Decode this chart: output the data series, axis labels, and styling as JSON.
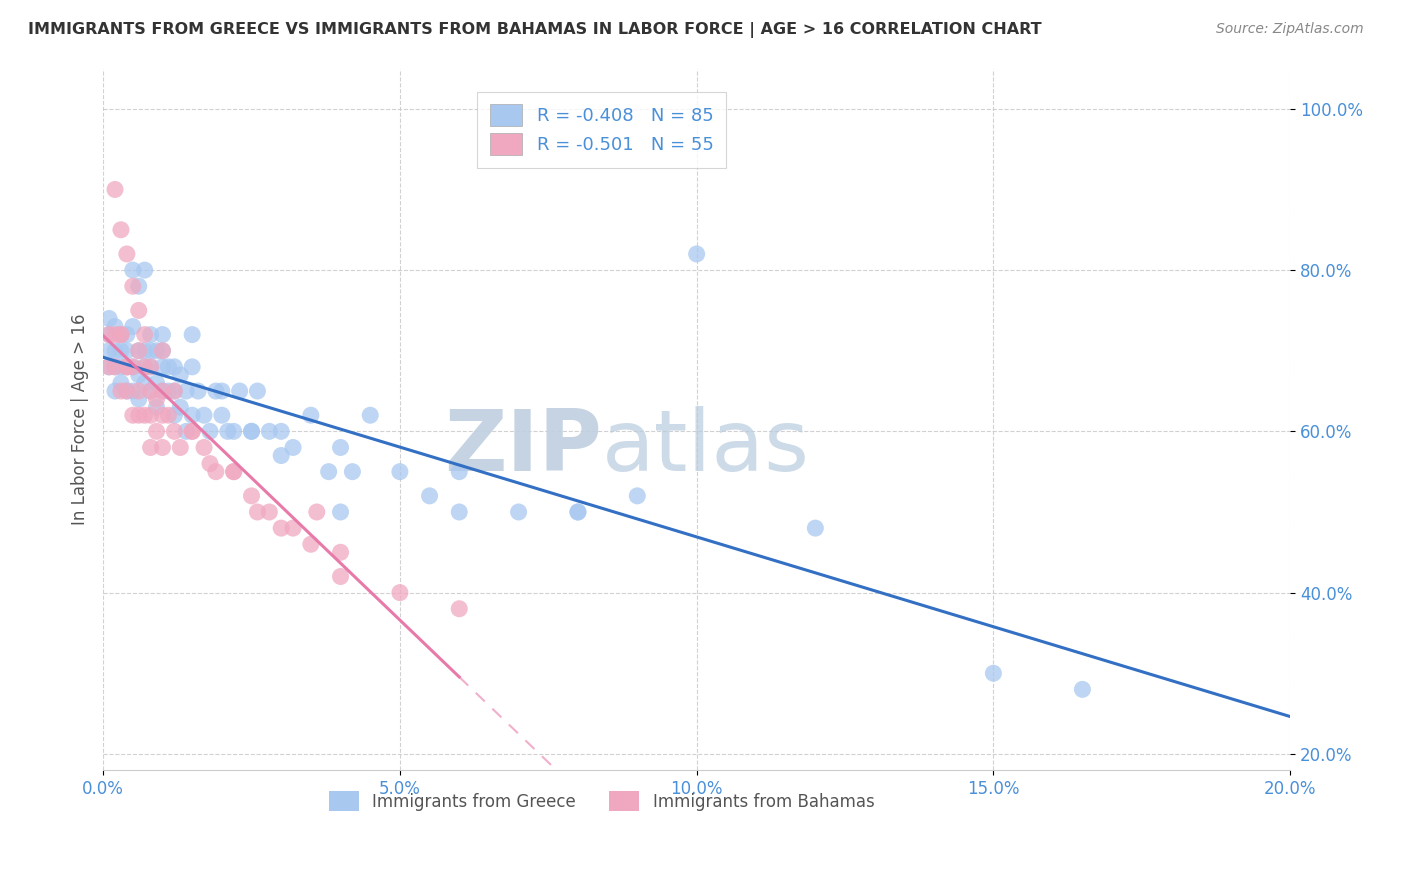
{
  "title": "IMMIGRANTS FROM GREECE VS IMMIGRANTS FROM BAHAMAS IN LABOR FORCE | AGE > 16 CORRELATION CHART",
  "source": "Source: ZipAtlas.com",
  "ylabel": "In Labor Force | Age > 16",
  "xlim": [
    0.0,
    0.2
  ],
  "ylim": [
    0.18,
    1.05
  ],
  "xticks": [
    0.0,
    0.05,
    0.1,
    0.15,
    0.2
  ],
  "yticks": [
    0.2,
    0.4,
    0.6,
    0.8,
    1.0
  ],
  "xtick_labels": [
    "0.0%",
    "5.0%",
    "10.0%",
    "15.0%",
    "20.0%"
  ],
  "ytick_labels": [
    "20.0%",
    "40.0%",
    "60.0%",
    "80.0%",
    "100.0%"
  ],
  "greece_color": "#a8c8f0",
  "bahamas_color": "#f0a8c0",
  "greece_line_color": "#3370c4",
  "bahamas_line_color": "#e87aaa",
  "greece_R": -0.408,
  "greece_N": 85,
  "bahamas_R": -0.501,
  "bahamas_N": 55,
  "watermark_zip": "ZIP",
  "watermark_atlas": "atlas",
  "watermark_color_zip": "#c0cfe0",
  "watermark_color_atlas": "#b8cce0",
  "legend_label_greece": "Immigrants from Greece",
  "legend_label_bahamas": "Immigrants from Bahamas",
  "greece_x": [
    0.001,
    0.001,
    0.001,
    0.001,
    0.002,
    0.002,
    0.002,
    0.002,
    0.003,
    0.003,
    0.003,
    0.003,
    0.004,
    0.004,
    0.004,
    0.004,
    0.005,
    0.005,
    0.005,
    0.006,
    0.006,
    0.006,
    0.007,
    0.007,
    0.007,
    0.008,
    0.008,
    0.008,
    0.009,
    0.009,
    0.009,
    0.01,
    0.01,
    0.01,
    0.011,
    0.011,
    0.012,
    0.012,
    0.013,
    0.013,
    0.014,
    0.014,
    0.015,
    0.015,
    0.016,
    0.017,
    0.018,
    0.019,
    0.02,
    0.021,
    0.022,
    0.023,
    0.025,
    0.026,
    0.028,
    0.03,
    0.032,
    0.035,
    0.038,
    0.04,
    0.042,
    0.045,
    0.05,
    0.055,
    0.06,
    0.07,
    0.08,
    0.09,
    0.1,
    0.005,
    0.006,
    0.007,
    0.008,
    0.01,
    0.012,
    0.015,
    0.02,
    0.025,
    0.03,
    0.04,
    0.06,
    0.08,
    0.12,
    0.15,
    0.165
  ],
  "greece_y": [
    0.72,
    0.68,
    0.74,
    0.7,
    0.7,
    0.65,
    0.73,
    0.68,
    0.72,
    0.68,
    0.7,
    0.66,
    0.7,
    0.65,
    0.68,
    0.72,
    0.73,
    0.68,
    0.65,
    0.7,
    0.67,
    0.64,
    0.7,
    0.66,
    0.68,
    0.68,
    0.72,
    0.65,
    0.66,
    0.7,
    0.63,
    0.68,
    0.65,
    0.72,
    0.65,
    0.68,
    0.65,
    0.62,
    0.63,
    0.67,
    0.6,
    0.65,
    0.68,
    0.62,
    0.65,
    0.62,
    0.6,
    0.65,
    0.62,
    0.6,
    0.6,
    0.65,
    0.6,
    0.65,
    0.6,
    0.6,
    0.58,
    0.62,
    0.55,
    0.58,
    0.55,
    0.62,
    0.55,
    0.52,
    0.55,
    0.5,
    0.5,
    0.52,
    0.82,
    0.8,
    0.78,
    0.8,
    0.7,
    0.7,
    0.68,
    0.72,
    0.65,
    0.6,
    0.57,
    0.5,
    0.5,
    0.5,
    0.48,
    0.3,
    0.28
  ],
  "bahamas_x": [
    0.001,
    0.001,
    0.002,
    0.002,
    0.003,
    0.003,
    0.004,
    0.004,
    0.005,
    0.005,
    0.006,
    0.006,
    0.007,
    0.007,
    0.008,
    0.008,
    0.009,
    0.009,
    0.01,
    0.01,
    0.011,
    0.012,
    0.013,
    0.015,
    0.017,
    0.019,
    0.022,
    0.025,
    0.028,
    0.032,
    0.036,
    0.04,
    0.002,
    0.003,
    0.004,
    0.005,
    0.006,
    0.007,
    0.008,
    0.01,
    0.012,
    0.015,
    0.018,
    0.022,
    0.026,
    0.03,
    0.035,
    0.04,
    0.05,
    0.06,
    0.003,
    0.004,
    0.006,
    0.008,
    0.01
  ],
  "bahamas_y": [
    0.72,
    0.68,
    0.72,
    0.68,
    0.72,
    0.65,
    0.68,
    0.65,
    0.68,
    0.62,
    0.7,
    0.65,
    0.68,
    0.62,
    0.65,
    0.62,
    0.64,
    0.6,
    0.62,
    0.58,
    0.62,
    0.6,
    0.58,
    0.6,
    0.58,
    0.55,
    0.55,
    0.52,
    0.5,
    0.48,
    0.5,
    0.45,
    0.9,
    0.85,
    0.82,
    0.78,
    0.75,
    0.72,
    0.68,
    0.7,
    0.65,
    0.6,
    0.56,
    0.55,
    0.5,
    0.48,
    0.46,
    0.42,
    0.4,
    0.38,
    0.72,
    0.68,
    0.62,
    0.58,
    0.65
  ],
  "background_color": "#ffffff",
  "grid_color": "#cccccc",
  "title_color": "#333333",
  "tick_color": "#4a90d9",
  "figsize": [
    14.06,
    8.92
  ],
  "dpi": 100
}
